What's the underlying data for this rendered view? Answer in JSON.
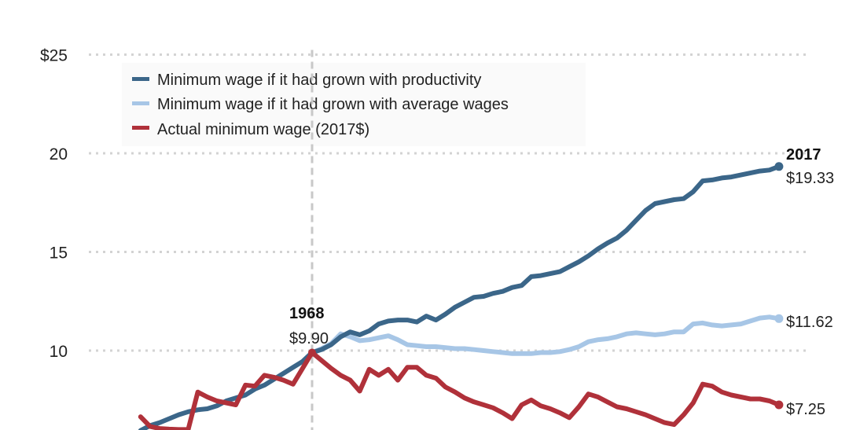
{
  "chart_data": {
    "type": "line",
    "title": "",
    "xlabel": "",
    "ylabel": "",
    "ylim": [
      5,
      25
    ],
    "xlim": [
      1950,
      2017
    ],
    "grid": true,
    "legend_position": "top-left",
    "yticks": [
      {
        "value": 25,
        "label": "$25"
      },
      {
        "value": 20,
        "label": "20"
      },
      {
        "value": 15,
        "label": "15"
      },
      {
        "value": 10,
        "label": "10"
      }
    ],
    "x": [
      1950,
      1951,
      1952,
      1953,
      1954,
      1955,
      1956,
      1957,
      1958,
      1959,
      1960,
      1961,
      1962,
      1963,
      1964,
      1965,
      1966,
      1967,
      1968,
      1969,
      1970,
      1971,
      1972,
      1973,
      1974,
      1975,
      1976,
      1977,
      1978,
      1979,
      1980,
      1981,
      1982,
      1983,
      1984,
      1985,
      1986,
      1987,
      1988,
      1989,
      1990,
      1991,
      1992,
      1993,
      1994,
      1995,
      1996,
      1997,
      1998,
      1999,
      2000,
      2001,
      2002,
      2003,
      2004,
      2005,
      2006,
      2007,
      2008,
      2009,
      2010,
      2011,
      2012,
      2013,
      2014,
      2015,
      2016,
      2017
    ],
    "series": [
      {
        "name": "Minimum wage if it had grown with productivity",
        "color": "#3b6689",
        "values": [
          5.95,
          6.2,
          6.35,
          6.55,
          6.75,
          6.9,
          7.0,
          7.05,
          7.2,
          7.45,
          7.6,
          7.75,
          8.05,
          8.25,
          8.55,
          8.85,
          9.15,
          9.45,
          9.9,
          10.05,
          10.3,
          10.7,
          10.95,
          10.8,
          11.0,
          11.35,
          11.5,
          11.55,
          11.55,
          11.45,
          11.75,
          11.55,
          11.85,
          12.2,
          12.45,
          12.7,
          12.75,
          12.9,
          13.0,
          13.2,
          13.3,
          13.75,
          13.8,
          13.9,
          14.0,
          14.25,
          14.5,
          14.8,
          15.15,
          15.45,
          15.7,
          16.1,
          16.6,
          17.1,
          17.45,
          17.55,
          17.65,
          17.7,
          18.05,
          18.6,
          18.65,
          18.75,
          18.8,
          18.9,
          19.0,
          19.1,
          19.15,
          19.33
        ]
      },
      {
        "name": "Minimum wage if it had grown with average wages",
        "color": "#a7c6e6",
        "values": [
          null,
          null,
          null,
          null,
          null,
          null,
          null,
          null,
          null,
          null,
          null,
          null,
          null,
          null,
          null,
          null,
          null,
          null,
          9.9,
          10.1,
          10.35,
          10.85,
          10.7,
          10.5,
          10.55,
          10.65,
          10.75,
          10.55,
          10.3,
          10.25,
          10.2,
          10.2,
          10.15,
          10.1,
          10.1,
          10.05,
          10.0,
          9.95,
          9.9,
          9.85,
          9.85,
          9.85,
          9.9,
          9.9,
          9.95,
          10.05,
          10.2,
          10.45,
          10.55,
          10.6,
          10.7,
          10.85,
          10.9,
          10.85,
          10.8,
          10.85,
          10.95,
          10.95,
          11.35,
          11.4,
          11.3,
          11.25,
          11.3,
          11.35,
          11.5,
          11.65,
          11.7,
          11.62
        ]
      },
      {
        "name": "Actual minimum wage (2017$)",
        "color": "#b0313a",
        "values": [
          6.65,
          6.15,
          6.05,
          6.02,
          6.0,
          6.0,
          7.9,
          7.65,
          7.45,
          7.35,
          7.25,
          8.25,
          8.2,
          8.75,
          8.65,
          8.5,
          8.3,
          9.1,
          9.9,
          9.5,
          9.1,
          8.75,
          8.5,
          7.95,
          9.05,
          8.75,
          9.05,
          8.5,
          9.15,
          9.15,
          8.75,
          8.6,
          8.15,
          7.9,
          7.6,
          7.4,
          7.25,
          7.1,
          6.85,
          6.55,
          7.25,
          7.5,
          7.2,
          7.05,
          6.85,
          6.6,
          7.15,
          7.8,
          7.65,
          7.4,
          7.15,
          7.05,
          6.9,
          6.75,
          6.55,
          6.35,
          6.25,
          6.75,
          7.35,
          8.3,
          8.2,
          7.9,
          7.75,
          7.65,
          7.55,
          7.55,
          7.45,
          7.25
        ]
      }
    ],
    "annotations": [
      {
        "year_label": "1968",
        "value_label": "$9.90",
        "x": 1968,
        "y": 9.9
      },
      {
        "year_label": "2017",
        "value_label": "$19.33",
        "x": 2017,
        "y": 19.33
      },
      {
        "year_label": "",
        "value_label": "$11.62",
        "x": 2017,
        "y": 11.62
      },
      {
        "year_label": "",
        "value_label": "$7.25",
        "x": 2017,
        "y": 7.25
      }
    ],
    "reference_line": {
      "x": 1968,
      "style": "dashed"
    }
  },
  "colors": {
    "productivity": "#3b6689",
    "average_wages": "#a7c6e6",
    "actual": "#b0313a",
    "grid": "#d3d3d3",
    "reference_line": "#c8c8c8"
  }
}
